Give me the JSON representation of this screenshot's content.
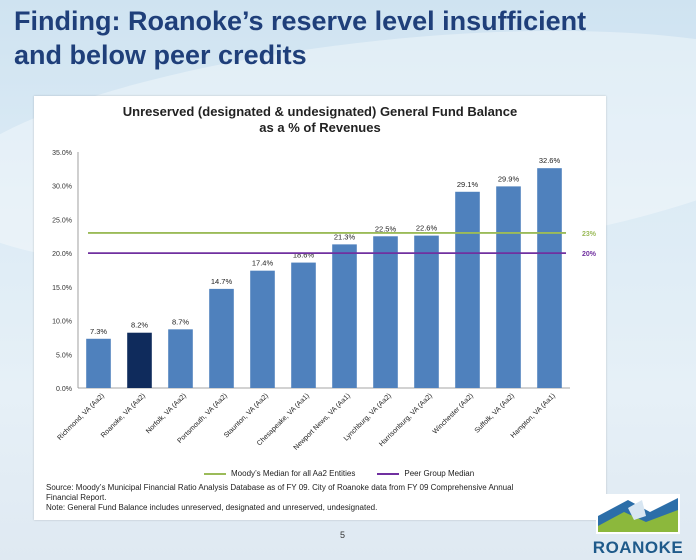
{
  "slide": {
    "title_line1": "Finding:  Roanoke’s reserve level insufficient",
    "title_line2": "and below peer credits",
    "page_number": "5",
    "logo_text": "ROANOKE"
  },
  "chart_data": {
    "type": "bar",
    "title_line1": "Unreserved (designated & undesignated) General Fund Balance",
    "title_line2": "as a % of Revenues",
    "categories": [
      "Richmond, VA (Aa2)",
      "Roanoke, VA (Aa2)",
      "Norfolk, VA (Aa2)",
      "Portsmouth, VA (Aa2)",
      "Staunton, VA (Aa2)",
      "Chesapeake, VA (Aa1)",
      "Newport News, VA (Aa1)",
      "Lynchburg, VA (Aa2)",
      "Harrisonburg, VA (Aa2)",
      "Winchester (Aa2)",
      "Suffolk, VA (Aa2)",
      "Hampton, VA (Aa1)"
    ],
    "values": [
      7.3,
      8.2,
      8.7,
      14.7,
      17.4,
      18.6,
      21.3,
      22.5,
      22.6,
      29.1,
      29.9,
      32.6
    ],
    "value_labels": [
      "7.3%",
      "8.2%",
      "8.7%",
      "14.7%",
      "17.4%",
      "18.6%",
      "21.3%",
      "22.5%",
      "22.6%",
      "29.1%",
      "29.9%",
      "32.6%"
    ],
    "highlight_index": 1,
    "bar_color": "#4f81bd",
    "highlight_color": "#0f2b5c",
    "ylim": [
      0,
      35
    ],
    "yticks": [
      "0.0%",
      "5.0%",
      "10.0%",
      "15.0%",
      "20.0%",
      "25.0%",
      "30.0%",
      "35.0%"
    ],
    "reference_lines": [
      {
        "name": "Moody’s Median for all Aa2 Entities",
        "value": 23,
        "label": "23%",
        "color": "#9bbb59"
      },
      {
        "name": "Peer Group Median",
        "value": 20,
        "label": "20%",
        "color": "#7030a0"
      }
    ],
    "grid": false,
    "legend_position": "bottom"
  },
  "notes": {
    "source_line1": "Source: Moody’s Municipal Financial Ratio Analysis Database as of FY 09. City of Roanoke data from FY 09 Comprehensive Annual",
    "source_line2": "Financial Report.",
    "note": "Note: General Fund Balance includes unreserved, designated and unreserved, undesignated."
  }
}
